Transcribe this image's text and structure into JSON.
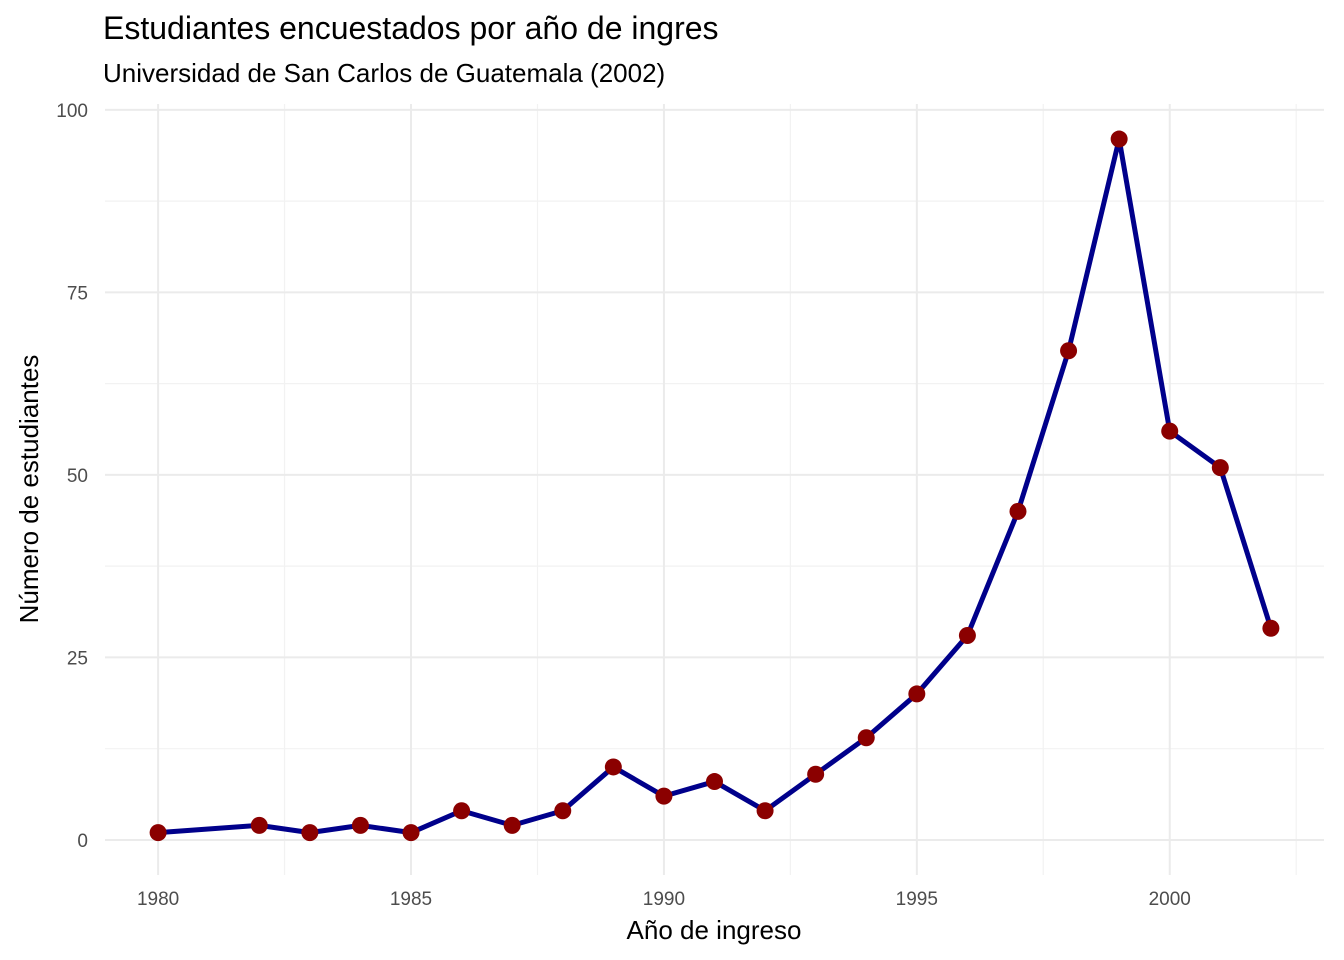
{
  "chart_data": {
    "type": "line",
    "title": "Estudiantes encuestados por año de ingres",
    "subtitle": "Universidad de San Carlos de Guatemala (2002)",
    "xlabel": "Año de ingreso",
    "ylabel": "Número de estudiantes",
    "x": [
      1980,
      1982,
      1983,
      1984,
      1985,
      1986,
      1987,
      1988,
      1989,
      1990,
      1991,
      1992,
      1993,
      1994,
      1995,
      1996,
      1997,
      1998,
      1999,
      2000,
      2001,
      2002
    ],
    "y": [
      1,
      2,
      1,
      2,
      1,
      4,
      2,
      4,
      10,
      6,
      8,
      4,
      9,
      14,
      20,
      28,
      45,
      67,
      96,
      56,
      51,
      29
    ],
    "xticks": [
      1980,
      1985,
      1990,
      1995,
      2000
    ],
    "yticks": [
      0,
      25,
      50,
      75,
      100
    ],
    "xlim": [
      1978.95,
      2003.05
    ],
    "ylim": [
      -4.8,
      100.8
    ],
    "grid": true,
    "line_color": "#00008B",
    "point_color": "#8B0000"
  }
}
